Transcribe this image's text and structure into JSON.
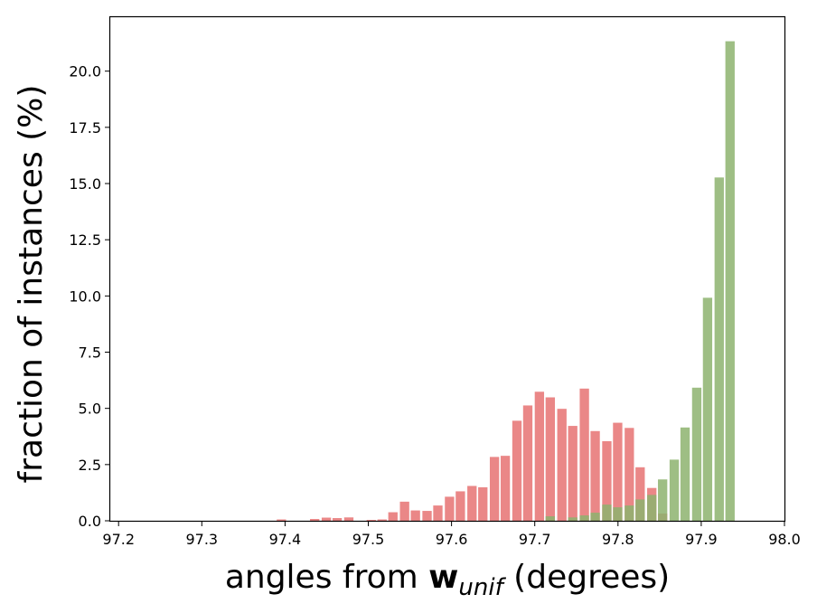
{
  "chart_data": {
    "type": "bar",
    "xlabel": {
      "prefix": "angles from ",
      "bold": "w",
      "subscript": "unif",
      "suffix": " (degrees)"
    },
    "ylabel": "fraction of instances (%)",
    "xlim": [
      97.19,
      98.0
    ],
    "ylim": [
      0,
      22.4
    ],
    "xticks": [
      "97.2",
      "97.3",
      "97.4",
      "97.5",
      "97.6",
      "97.7",
      "97.8",
      "97.9",
      "98.0"
    ],
    "yticks": [
      "0.0",
      "2.5",
      "5.0",
      "7.5",
      "10.0",
      "12.5",
      "15.0",
      "17.5",
      "20.0"
    ],
    "bar_width": 0.0112,
    "grid": false,
    "series": [
      {
        "color": "#e87a7a",
        "opacity": 0.9,
        "bins": [
          {
            "x": 97.39,
            "y": 0.06
          },
          {
            "x": 97.43,
            "y": 0.08
          },
          {
            "x": 97.444,
            "y": 0.14
          },
          {
            "x": 97.457,
            "y": 0.12
          },
          {
            "x": 97.471,
            "y": 0.15
          },
          {
            "x": 97.498,
            "y": 0.04
          },
          {
            "x": 97.511,
            "y": 0.06
          },
          {
            "x": 97.524,
            "y": 0.38
          },
          {
            "x": 97.538,
            "y": 0.85
          },
          {
            "x": 97.551,
            "y": 0.46
          },
          {
            "x": 97.565,
            "y": 0.44
          },
          {
            "x": 97.578,
            "y": 0.68
          },
          {
            "x": 97.592,
            "y": 1.07
          },
          {
            "x": 97.605,
            "y": 1.31
          },
          {
            "x": 97.619,
            "y": 1.55
          },
          {
            "x": 97.632,
            "y": 1.49
          },
          {
            "x": 97.646,
            "y": 2.84
          },
          {
            "x": 97.659,
            "y": 2.89
          },
          {
            "x": 97.673,
            "y": 4.45
          },
          {
            "x": 97.686,
            "y": 5.13
          },
          {
            "x": 97.7,
            "y": 5.74
          },
          {
            "x": 97.713,
            "y": 5.49
          },
          {
            "x": 97.727,
            "y": 4.98
          },
          {
            "x": 97.74,
            "y": 4.22
          },
          {
            "x": 97.754,
            "y": 5.88
          },
          {
            "x": 97.767,
            "y": 3.99
          },
          {
            "x": 97.781,
            "y": 3.54
          },
          {
            "x": 97.794,
            "y": 4.36
          },
          {
            "x": 97.808,
            "y": 4.13
          },
          {
            "x": 97.821,
            "y": 2.38
          },
          {
            "x": 97.835,
            "y": 1.46
          },
          {
            "x": 97.848,
            "y": 0.32
          }
        ]
      },
      {
        "color": "#8db36e",
        "opacity": 0.85,
        "bins": [
          {
            "x": 97.713,
            "y": 0.2
          },
          {
            "x": 97.74,
            "y": 0.15
          },
          {
            "x": 97.754,
            "y": 0.24
          },
          {
            "x": 97.767,
            "y": 0.36
          },
          {
            "x": 97.781,
            "y": 0.72
          },
          {
            "x": 97.794,
            "y": 0.6
          },
          {
            "x": 97.808,
            "y": 0.68
          },
          {
            "x": 97.821,
            "y": 0.95
          },
          {
            "x": 97.835,
            "y": 1.15
          },
          {
            "x": 97.848,
            "y": 1.84
          },
          {
            "x": 97.862,
            "y": 2.72
          },
          {
            "x": 97.875,
            "y": 4.15
          },
          {
            "x": 97.889,
            "y": 5.92
          },
          {
            "x": 97.902,
            "y": 9.92
          },
          {
            "x": 97.916,
            "y": 15.27
          },
          {
            "x": 97.929,
            "y": 21.33
          }
        ]
      }
    ]
  }
}
